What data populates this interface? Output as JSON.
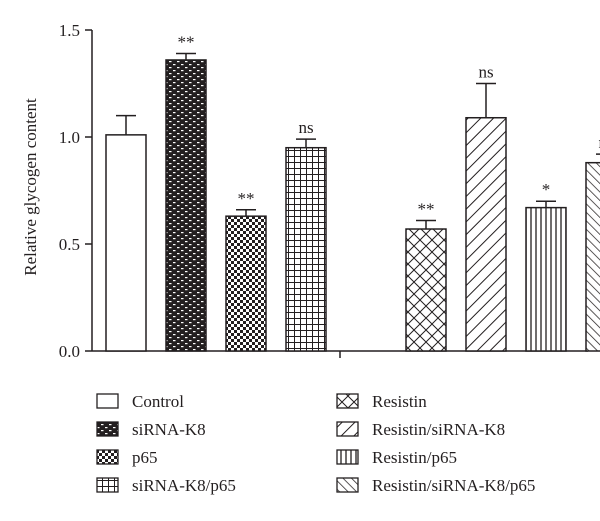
{
  "chart_data": {
    "type": "bar",
    "title": "",
    "xlabel": "",
    "ylabel": "Relative glycogen content",
    "ylim": [
      0,
      1.5
    ],
    "yticks": [
      "0.0",
      "0.5",
      "1.0",
      "1.5"
    ],
    "grid": false,
    "legend_position": "bottom",
    "categories": [
      "Control",
      "siRNA-K8",
      "p65",
      "siRNA-K8/p65",
      "Resistin",
      "Resistin/siRNA-K8",
      "Resistin/p65",
      "Resistin/siRNA-K8/p65"
    ],
    "values": [
      1.01,
      1.36,
      0.63,
      0.95,
      0.57,
      1.09,
      0.67,
      0.88
    ],
    "errors": [
      0.09,
      0.03,
      0.03,
      0.04,
      0.04,
      0.16,
      0.03,
      0.04
    ],
    "significance": [
      "",
      "**",
      "**",
      "ns",
      "**",
      "ns",
      "*",
      "ns"
    ],
    "bar_order": [
      0,
      1,
      2,
      3,
      5,
      6,
      7,
      8
    ],
    "patterns": [
      "none",
      "bricks",
      "checker",
      "grid",
      "diamonds",
      "diag-right",
      "vertical",
      "diag-left"
    ],
    "colors": {
      "ink": "#231f20",
      "background": "#ffffff"
    }
  }
}
